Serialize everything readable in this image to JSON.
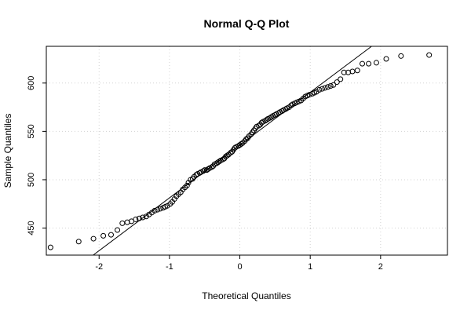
{
  "chart_data": {
    "type": "scatter",
    "title": "Normal Q-Q Plot",
    "xlabel": "Theoretical Quantiles",
    "ylabel": "Sample Quantiles",
    "xlim": [
      -2.75,
      2.95
    ],
    "ylim": [
      422,
      638
    ],
    "x_ticks": [
      -2,
      -1,
      0,
      1,
      2
    ],
    "y_ticks": [
      450,
      500,
      550,
      600
    ],
    "grid": true,
    "reference_line": {
      "slope": 54.6,
      "intercept": 535.8
    },
    "points": [
      [
        -2.69,
        430
      ],
      [
        -2.29,
        436
      ],
      [
        -2.08,
        439
      ],
      [
        -1.94,
        442
      ],
      [
        -1.83,
        443
      ],
      [
        -1.74,
        448
      ],
      [
        -1.67,
        455
      ],
      [
        -1.6,
        456
      ],
      [
        -1.54,
        457
      ],
      [
        -1.48,
        459
      ],
      [
        -1.43,
        460
      ],
      [
        -1.38,
        461
      ],
      [
        -1.33,
        462
      ],
      [
        -1.29,
        464
      ],
      [
        -1.25,
        466
      ],
      [
        -1.21,
        468
      ],
      [
        -1.17,
        469
      ],
      [
        -1.13,
        470
      ],
      [
        -1.09,
        471
      ],
      [
        -1.06,
        472
      ],
      [
        -1.03,
        473
      ],
      [
        -0.99,
        475
      ],
      [
        -0.96,
        477
      ],
      [
        -0.93,
        480
      ],
      [
        -0.9,
        483
      ],
      [
        -0.87,
        485
      ],
      [
        -0.84,
        487
      ],
      [
        -0.81,
        490
      ],
      [
        -0.78,
        492
      ],
      [
        -0.75,
        494
      ],
      [
        -0.73,
        497
      ],
      [
        -0.7,
        500
      ],
      [
        -0.67,
        501
      ],
      [
        -0.65,
        503
      ],
      [
        -0.62,
        505
      ],
      [
        -0.6,
        506
      ],
      [
        -0.57,
        507
      ],
      [
        -0.55,
        508
      ],
      [
        -0.52,
        509
      ],
      [
        -0.5,
        510
      ],
      [
        -0.47,
        510
      ],
      [
        -0.45,
        511
      ],
      [
        -0.43,
        512
      ],
      [
        -0.4,
        513
      ],
      [
        -0.38,
        514
      ],
      [
        -0.36,
        516
      ],
      [
        -0.33,
        517
      ],
      [
        -0.31,
        518
      ],
      [
        -0.29,
        519
      ],
      [
        -0.27,
        520
      ],
      [
        -0.24,
        521
      ],
      [
        -0.22,
        522
      ],
      [
        -0.2,
        524
      ],
      [
        -0.18,
        525
      ],
      [
        -0.16,
        526
      ],
      [
        -0.13,
        528
      ],
      [
        -0.11,
        529
      ],
      [
        -0.09,
        531
      ],
      [
        -0.07,
        533
      ],
      [
        -0.05,
        534
      ],
      [
        -0.02,
        535
      ],
      [
        0.0,
        536
      ],
      [
        0.02,
        537
      ],
      [
        0.04,
        538
      ],
      [
        0.07,
        540
      ],
      [
        0.09,
        542
      ],
      [
        0.11,
        543
      ],
      [
        0.13,
        545
      ],
      [
        0.16,
        547
      ],
      [
        0.18,
        549
      ],
      [
        0.2,
        551
      ],
      [
        0.22,
        553
      ],
      [
        0.24,
        555
      ],
      [
        0.27,
        556
      ],
      [
        0.29,
        557
      ],
      [
        0.31,
        559
      ],
      [
        0.33,
        560
      ],
      [
        0.36,
        561
      ],
      [
        0.38,
        562
      ],
      [
        0.4,
        563
      ],
      [
        0.43,
        564
      ],
      [
        0.45,
        565
      ],
      [
        0.47,
        566
      ],
      [
        0.5,
        567
      ],
      [
        0.52,
        568
      ],
      [
        0.55,
        569
      ],
      [
        0.57,
        570
      ],
      [
        0.6,
        571
      ],
      [
        0.62,
        572
      ],
      [
        0.65,
        573
      ],
      [
        0.67,
        574
      ],
      [
        0.7,
        575
      ],
      [
        0.73,
        577
      ],
      [
        0.75,
        578
      ],
      [
        0.78,
        579
      ],
      [
        0.81,
        580
      ],
      [
        0.84,
        581
      ],
      [
        0.87,
        582
      ],
      [
        0.9,
        584
      ],
      [
        0.93,
        586
      ],
      [
        0.96,
        587
      ],
      [
        0.99,
        588
      ],
      [
        1.03,
        589
      ],
      [
        1.06,
        590
      ],
      [
        1.09,
        591
      ],
      [
        1.13,
        593
      ],
      [
        1.17,
        594
      ],
      [
        1.21,
        595
      ],
      [
        1.25,
        596
      ],
      [
        1.29,
        597
      ],
      [
        1.33,
        598
      ],
      [
        1.38,
        601
      ],
      [
        1.43,
        604
      ],
      [
        1.48,
        611
      ],
      [
        1.54,
        611
      ],
      [
        1.6,
        612
      ],
      [
        1.67,
        613
      ],
      [
        1.74,
        620
      ],
      [
        1.83,
        620
      ],
      [
        1.94,
        621
      ],
      [
        2.08,
        625
      ],
      [
        2.29,
        628
      ],
      [
        2.69,
        629
      ]
    ]
  }
}
